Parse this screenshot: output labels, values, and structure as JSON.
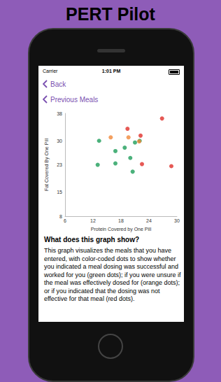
{
  "page": {
    "title": "PERT Pilot",
    "status_bar": {
      "carrier": "Carrier",
      "time": "1:01 PM"
    },
    "nav": {
      "back": "Back",
      "previous": "Previous Meals"
    },
    "section_heading": "What does this graph show?",
    "section_text": "This graph visualizes the meals that you have entered, with color-coded dots to show whether you indicated a meal dosing was successful and worked for you (green dots); if you were unsure if the meal was effectively dosed for (orange dots); or if you indicated that the dosing was not effective for that meal (red dots)."
  },
  "chart_data": {
    "type": "scatter",
    "x_label": "Protein Covered by One Pill",
    "y_label": "Fat Covered By One Pill",
    "xlim": [
      6,
      30
    ],
    "xticks": [
      6,
      12,
      18,
      24,
      30
    ],
    "ylim": [
      8,
      38
    ],
    "yticks": [
      8,
      15,
      23,
      30,
      38
    ],
    "grid": false,
    "marker": "circle",
    "series": [
      {
        "color": "#1e9e5a",
        "x": [
          13.3,
          13.0,
          16.8,
          16.8,
          18.8,
          20.0,
          20.5,
          21.0,
          22.0
        ],
        "values": [
          30.0,
          23.0,
          27.0,
          23.4,
          28.0,
          25.0,
          21.0,
          29.5,
          30.0
        ]
      },
      {
        "color": "#f0883a",
        "x": [
          15.8,
          19.6,
          21.9
        ],
        "values": [
          31.0,
          31.0,
          29.8
        ]
      },
      {
        "color": "#e0302a",
        "x": [
          19.4,
          22.2,
          22.5,
          28.8,
          26.8
        ],
        "values": [
          33.5,
          31.5,
          23.2,
          22.6,
          36.5
        ]
      }
    ]
  }
}
